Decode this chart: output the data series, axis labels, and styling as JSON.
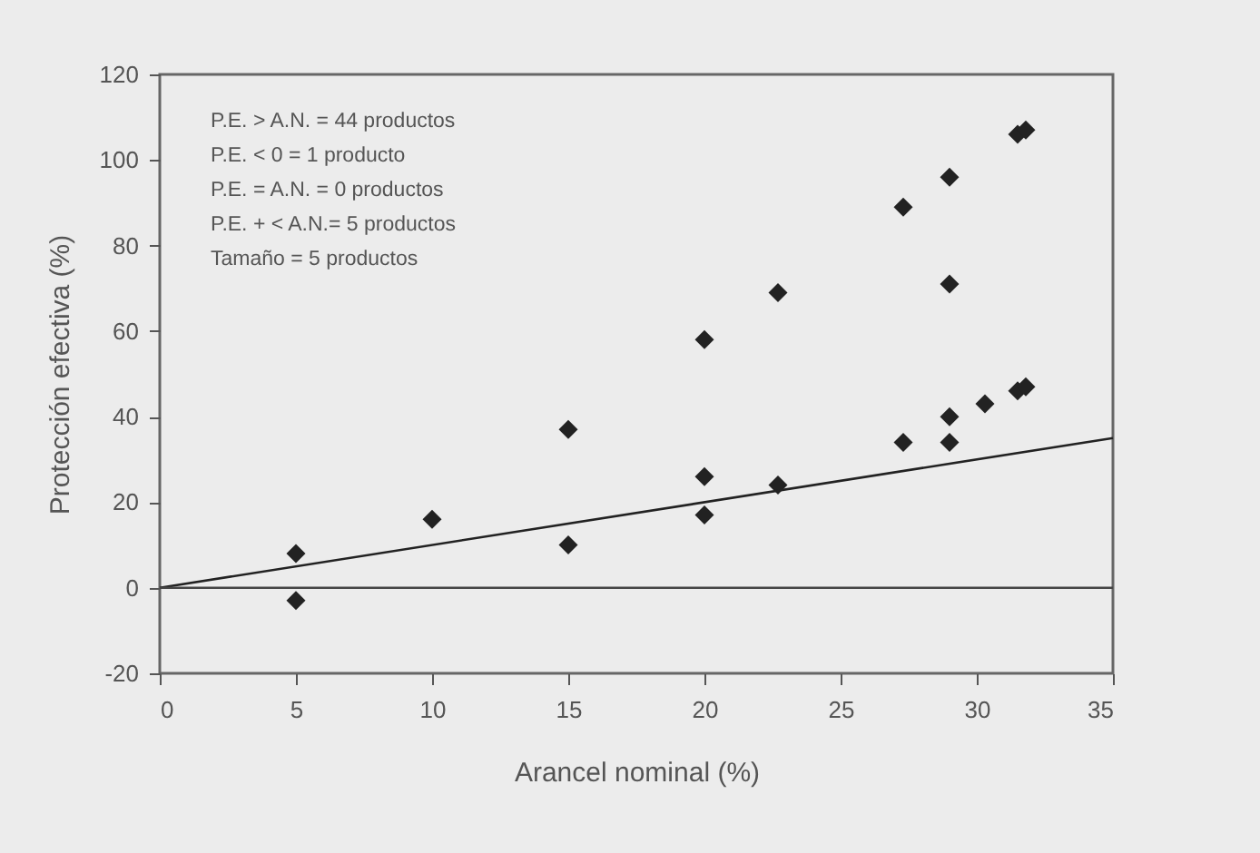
{
  "chart_data": {
    "type": "scatter",
    "xlabel": "Arancel nominal (%)",
    "ylabel": "Protección efectiva (%)",
    "annotations": [
      "P.E. > A.N. = 44 productos",
      "P.E. < 0 = 1 producto",
      "P.E. = A.N. = 0 productos",
      "P.E. + < A.N.= 5 productos",
      "Tamaño = 5 productos"
    ],
    "xlim": [
      0,
      35
    ],
    "xticks": [
      0,
      5,
      10,
      15,
      20,
      25,
      30,
      35
    ],
    "ylim": [
      -20,
      120
    ],
    "yticks": [
      -20,
      0,
      20,
      40,
      60,
      80,
      100,
      120
    ],
    "grid": false,
    "ref_lines": [
      {
        "axis": "y",
        "value": 0,
        "color": "#444444"
      }
    ],
    "series": [
      {
        "type": "scatter",
        "marker": "diamond",
        "color": "#222222",
        "x": [
          5,
          5,
          10,
          15,
          15,
          20,
          20,
          20,
          22.7,
          22.7,
          27.3,
          27.3,
          29,
          29,
          29,
          29,
          30.3,
          31.5,
          31.8,
          31.5,
          31.8
        ],
        "values": [
          8,
          -3,
          16,
          37,
          10,
          58,
          26,
          17,
          69,
          24,
          89,
          34,
          96,
          71,
          40,
          34,
          43,
          106,
          107,
          46,
          47
        ]
      },
      {
        "type": "line",
        "marker": "none",
        "color": "#222222",
        "x": [
          0,
          35
        ],
        "values": [
          0,
          35
        ]
      }
    ]
  }
}
